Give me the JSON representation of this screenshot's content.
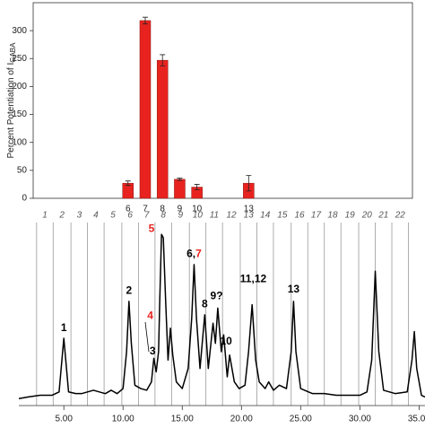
{
  "chart_data": [
    {
      "type": "bar",
      "ylabel": "Percent Potentiation of I",
      "ylabel_subscript": "GABA",
      "categories": [
        null,
        null,
        null,
        null,
        null,
        "6",
        "7",
        "8",
        "9",
        "10",
        null,
        null,
        "13",
        null,
        null,
        null,
        null,
        null,
        null,
        null,
        null,
        null
      ],
      "values": [
        null,
        null,
        null,
        null,
        null,
        27,
        318,
        247,
        34,
        20,
        null,
        null,
        27,
        null,
        null,
        null,
        null,
        null,
        null,
        null,
        null,
        null
      ],
      "errors": [
        null,
        null,
        null,
        null,
        null,
        4,
        6,
        10,
        2,
        5,
        null,
        null,
        14,
        null,
        null,
        null,
        null,
        null,
        null,
        null,
        null,
        null
      ],
      "color": "#e8231f",
      "ylim": [
        0,
        350
      ],
      "yticks": [
        0,
        50,
        100,
        150,
        200,
        250,
        300
      ]
    },
    {
      "type": "line",
      "x": [
        1.2,
        2,
        3,
        4,
        4.6,
        4.9,
        5.0,
        5.1,
        5.4,
        6,
        6.5,
        7,
        7.5,
        8,
        8.5,
        9,
        9.5,
        10,
        10.3,
        10.5,
        10.7,
        11,
        11.5,
        12,
        12.4,
        12.6,
        12.8,
        13.0,
        13.1,
        13.25,
        13.4,
        13.6,
        13.8,
        14.0,
        14.2,
        14.5,
        15.0,
        15.5,
        15.8,
        16.0,
        16.2,
        16.5,
        16.9,
        17.2,
        17.6,
        17.8,
        18.0,
        18.3,
        18.5,
        18.8,
        19.0,
        19.4,
        19.8,
        20.3,
        20.6,
        20.9,
        21.2,
        21.5,
        22.0,
        22.3,
        22.7,
        23.2,
        23.8,
        24.2,
        24.4,
        24.6,
        25.0,
        26,
        27,
        28,
        29,
        30,
        30.6,
        31.0,
        31.3,
        31.6,
        32,
        33,
        34,
        34.4,
        34.6,
        34.8,
        35.2,
        35.5
      ],
      "y": [
        2,
        3,
        4,
        4,
        6,
        30,
        38,
        30,
        6,
        5,
        5,
        6,
        7,
        6,
        5,
        7,
        5,
        8,
        30,
        60,
        35,
        10,
        8,
        7,
        12,
        26,
        18,
        30,
        60,
        100,
        98,
        60,
        25,
        44,
        28,
        12,
        8,
        20,
        50,
        82,
        50,
        20,
        52,
        20,
        47,
        35,
        56,
        30,
        40,
        15,
        28,
        12,
        8,
        10,
        30,
        58,
        25,
        12,
        8,
        12,
        7,
        10,
        8,
        30,
        60,
        30,
        8,
        5,
        5,
        4,
        4,
        4,
        6,
        25,
        78,
        30,
        7,
        5,
        6,
        25,
        42,
        20,
        4,
        3
      ],
      "color": "#000000",
      "xlim": [
        1.2,
        35.5
      ],
      "ylim": [
        0,
        106
      ],
      "xticks": [
        {
          "value": 5,
          "label": "5.00"
        },
        {
          "value": 10,
          "label": "10.00"
        },
        {
          "value": 15,
          "label": "15.00"
        },
        {
          "value": 20,
          "label": "20.00"
        },
        {
          "value": 25,
          "label": "25.00"
        },
        {
          "value": 30,
          "label": "30.00"
        },
        {
          "value": 35,
          "label": "35.00"
        }
      ],
      "fractions": {
        "labels": [
          "1",
          "2",
          "3",
          "4",
          "5",
          "6",
          "7",
          "8",
          "9",
          "10",
          "11",
          "12",
          "13",
          "14",
          "15",
          "16",
          "17",
          "18",
          "19",
          "20",
          "21",
          "22"
        ],
        "bounds": [
          2.7,
          4.1,
          5.6,
          7.0,
          8.4,
          9.9,
          11.3,
          12.7,
          14.1,
          15.6,
          17.0,
          18.4,
          19.9,
          21.3,
          22.7,
          24.2,
          25.6,
          27.0,
          28.4,
          29.9,
          31.3,
          32.7,
          34.1
        ]
      },
      "annotations": [
        {
          "parts": [
            {
              "text": "1",
              "color": "#000000"
            }
          ],
          "x": 5.0,
          "y": 44
        },
        {
          "parts": [
            {
              "text": "2",
              "color": "#000000"
            }
          ],
          "x": 10.5,
          "y": 66
        },
        {
          "parts": [
            {
              "text": "3",
              "color": "#000000"
            }
          ],
          "x": 12.5,
          "y": 30
        },
        {
          "parts": [
            {
              "text": "4",
              "color": "#e8231f"
            }
          ],
          "x": 12.3,
          "y": 51
        },
        {
          "parts": [
            {
              "text": "5",
              "color": "#e8231f"
            }
          ],
          "x": 12.4,
          "y": 103
        },
        {
          "parts": [
            {
              "text": "6,",
              "color": "#000000"
            },
            {
              "text": "7",
              "color": "#e8231f"
            }
          ],
          "x": 16.0,
          "y": 88
        },
        {
          "parts": [
            {
              "text": "8",
              "color": "#000000"
            }
          ],
          "x": 16.9,
          "y": 58
        },
        {
          "parts": [
            {
              "text": "9?",
              "color": "#000000"
            }
          ],
          "x": 17.9,
          "y": 63
        },
        {
          "parts": [
            {
              "text": "10",
              "color": "#000000"
            }
          ],
          "x": 18.7,
          "y": 36
        },
        {
          "parts": [
            {
              "text": "11,12",
              "color": "#000000"
            }
          ],
          "x": 21.0,
          "y": 73
        },
        {
          "parts": [
            {
              "text": "13",
              "color": "#000000"
            }
          ],
          "x": 24.4,
          "y": 67
        }
      ]
    }
  ]
}
